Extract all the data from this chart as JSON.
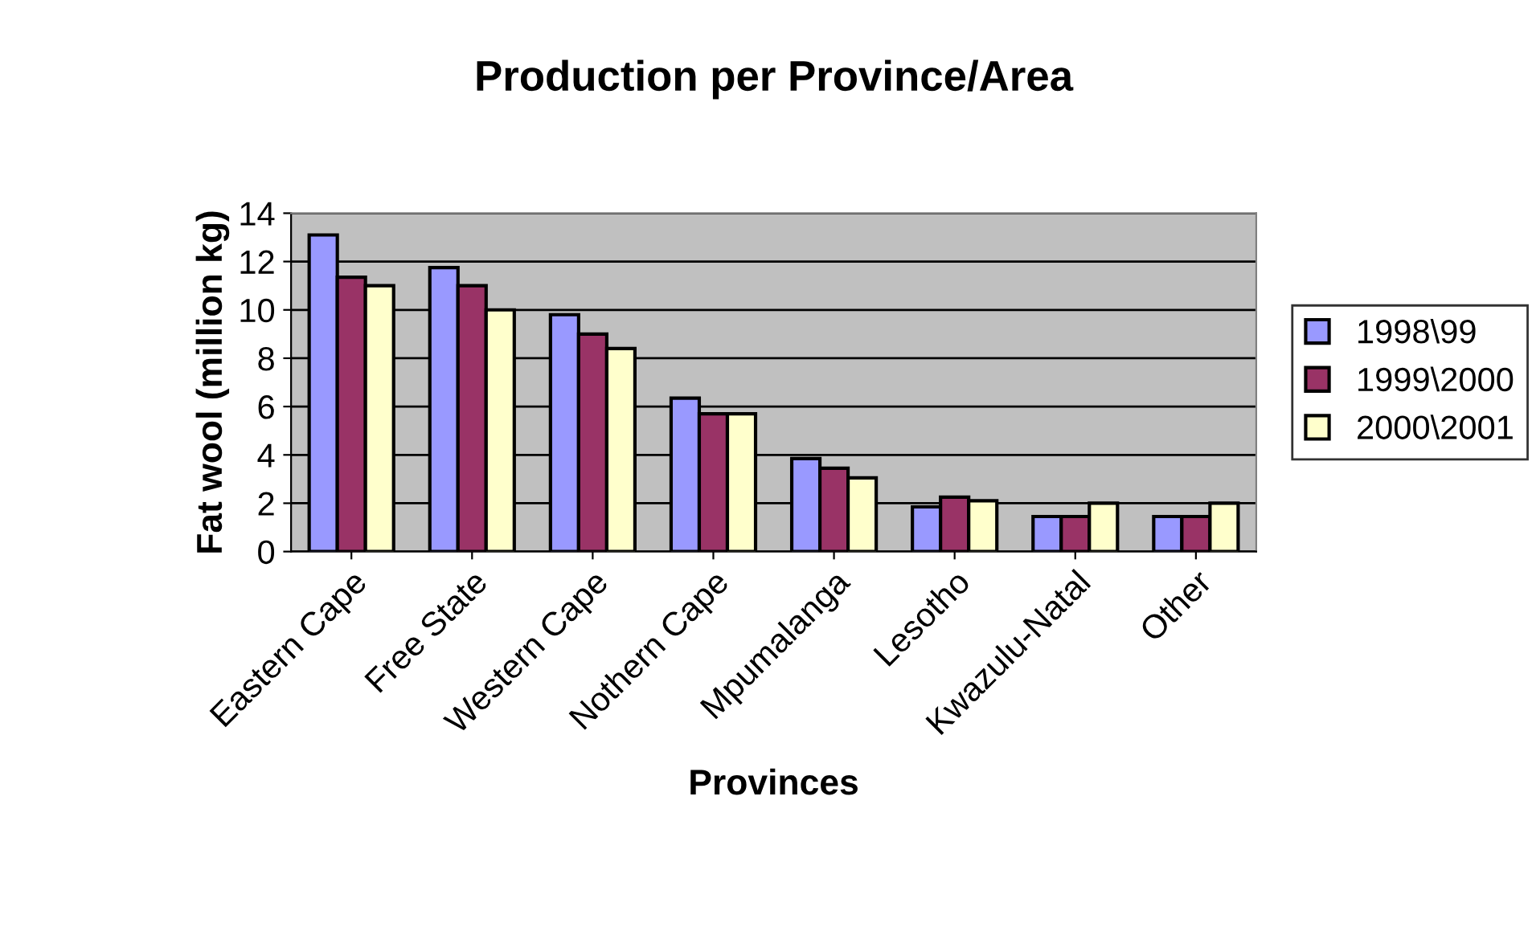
{
  "chart_data": {
    "type": "bar",
    "title": "Production per Province/Area",
    "xlabel": "Provinces",
    "ylabel": "Fat wool (million kg)",
    "categories": [
      "Eastern Cape",
      "Free State",
      "Western Cape",
      "Nothern Cape",
      "Mpumalanga",
      "Lesotho",
      "Kwazulu-Natal",
      "Other"
    ],
    "series": [
      {
        "name": "1998\\99",
        "color": "#9999ff",
        "values": [
          13.1,
          11.75,
          9.8,
          6.35,
          3.85,
          1.85,
          1.45,
          1.45
        ]
      },
      {
        "name": "1999\\2000",
        "color": "#993366",
        "values": [
          11.35,
          11.0,
          9.0,
          5.7,
          3.45,
          2.25,
          1.45,
          1.45
        ]
      },
      {
        "name": "2000\\2001",
        "color": "#ffffcc",
        "values": [
          11.0,
          10.0,
          8.4,
          5.7,
          3.05,
          2.1,
          2.0,
          2.0
        ]
      }
    ],
    "ylim": [
      0,
      14
    ],
    "yticks": [
      0,
      2,
      4,
      6,
      8,
      10,
      12,
      14
    ],
    "grid": "y",
    "legend": "right"
  }
}
